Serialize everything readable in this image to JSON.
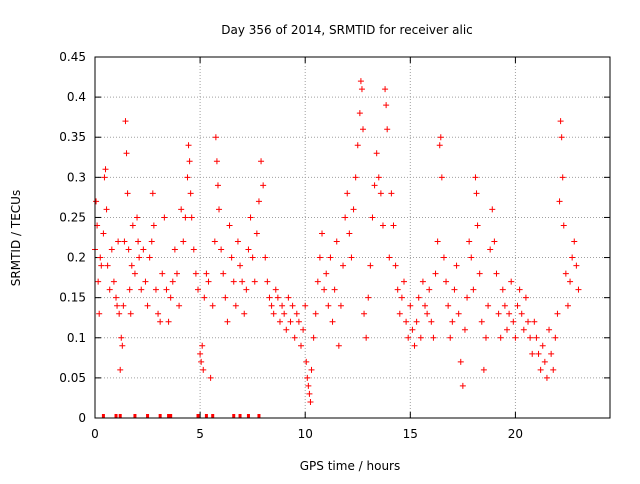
{
  "chart_data": {
    "type": "scatter",
    "title": "Day 356 of 2014, SRMTID for receiver alic",
    "xlabel": "GPS time / hours",
    "ylabel": "SRMTID / TECUs",
    "xlim": [
      0,
      24.5
    ],
    "ylim": [
      0,
      0.45
    ],
    "x_ticks": [
      0,
      5,
      10,
      15,
      20
    ],
    "y_ticks": [
      0,
      0.05,
      0.1,
      0.15,
      0.2,
      0.25,
      0.3,
      0.35,
      0.4,
      0.45
    ],
    "x_tick_labels": [
      "0",
      "5",
      "10",
      "15",
      "20"
    ],
    "y_tick_labels": [
      "0",
      "0.05",
      "0.1",
      "0.15",
      "0.2",
      "0.25",
      "0.3",
      "0.35",
      "0.4",
      "0.45"
    ],
    "grid": true,
    "marker": "+",
    "color": "#ff0000",
    "series": [
      {
        "values": [
          [
            0.0,
            0.21
          ],
          [
            0.05,
            0.27
          ],
          [
            0.1,
            0.24
          ],
          [
            0.15,
            0.17
          ],
          [
            0.2,
            0.13
          ],
          [
            0.25,
            0.2
          ],
          [
            0.3,
            0.19
          ],
          [
            0.4,
            0.23
          ],
          [
            0.45,
            0.3
          ],
          [
            0.5,
            0.31
          ],
          [
            0.55,
            0.26
          ],
          [
            0.6,
            0.19
          ],
          [
            0.7,
            0.16
          ],
          [
            0.8,
            0.21
          ],
          [
            0.9,
            0.17
          ],
          [
            1.0,
            0.15
          ],
          [
            1.05,
            0.14
          ],
          [
            1.1,
            0.22
          ],
          [
            1.15,
            0.13
          ],
          [
            1.2,
            0.06
          ],
          [
            1.25,
            0.1
          ],
          [
            1.3,
            0.09
          ],
          [
            1.35,
            0.14
          ],
          [
            1.4,
            0.22
          ],
          [
            1.45,
            0.37
          ],
          [
            1.5,
            0.33
          ],
          [
            1.55,
            0.28
          ],
          [
            1.6,
            0.21
          ],
          [
            1.65,
            0.16
          ],
          [
            1.7,
            0.13
          ],
          [
            1.75,
            0.19
          ],
          [
            1.8,
            0.24
          ],
          [
            1.9,
            0.18
          ],
          [
            2.0,
            0.25
          ],
          [
            2.05,
            0.22
          ],
          [
            2.1,
            0.2
          ],
          [
            2.2,
            0.16
          ],
          [
            2.3,
            0.21
          ],
          [
            2.4,
            0.17
          ],
          [
            2.5,
            0.14
          ],
          [
            2.6,
            0.2
          ],
          [
            2.7,
            0.22
          ],
          [
            2.75,
            0.28
          ],
          [
            2.8,
            0.24
          ],
          [
            2.9,
            0.16
          ],
          [
            3.0,
            0.13
          ],
          [
            3.1,
            0.12
          ],
          [
            3.2,
            0.18
          ],
          [
            3.3,
            0.25
          ],
          [
            3.4,
            0.16
          ],
          [
            3.5,
            0.12
          ],
          [
            3.6,
            0.15
          ],
          [
            3.7,
            0.17
          ],
          [
            3.8,
            0.21
          ],
          [
            3.9,
            0.18
          ],
          [
            4.0,
            0.14
          ],
          [
            4.1,
            0.26
          ],
          [
            4.2,
            0.22
          ],
          [
            4.3,
            0.25
          ],
          [
            4.4,
            0.3
          ],
          [
            4.45,
            0.34
          ],
          [
            4.5,
            0.32
          ],
          [
            4.55,
            0.28
          ],
          [
            4.6,
            0.25
          ],
          [
            4.7,
            0.21
          ],
          [
            4.8,
            0.18
          ],
          [
            4.9,
            0.16
          ],
          [
            5.0,
            0.08
          ],
          [
            5.05,
            0.07
          ],
          [
            5.1,
            0.09
          ],
          [
            5.15,
            0.06
          ],
          [
            5.2,
            0.15
          ],
          [
            5.3,
            0.18
          ],
          [
            5.4,
            0.17
          ],
          [
            5.5,
            0.05
          ],
          [
            5.6,
            0.14
          ],
          [
            5.7,
            0.22
          ],
          [
            5.75,
            0.35
          ],
          [
            5.8,
            0.32
          ],
          [
            5.85,
            0.29
          ],
          [
            5.9,
            0.26
          ],
          [
            6.0,
            0.21
          ],
          [
            6.1,
            0.18
          ],
          [
            6.2,
            0.15
          ],
          [
            6.3,
            0.12
          ],
          [
            6.4,
            0.24
          ],
          [
            6.5,
            0.2
          ],
          [
            6.6,
            0.17
          ],
          [
            6.7,
            0.14
          ],
          [
            6.8,
            0.22
          ],
          [
            6.9,
            0.19
          ],
          [
            7.0,
            0.17
          ],
          [
            7.1,
            0.13
          ],
          [
            7.2,
            0.16
          ],
          [
            7.3,
            0.21
          ],
          [
            7.4,
            0.25
          ],
          [
            7.5,
            0.2
          ],
          [
            7.6,
            0.17
          ],
          [
            7.7,
            0.23
          ],
          [
            7.8,
            0.27
          ],
          [
            7.9,
            0.32
          ],
          [
            8.0,
            0.29
          ],
          [
            8.1,
            0.2
          ],
          [
            8.2,
            0.17
          ],
          [
            8.3,
            0.15
          ],
          [
            8.4,
            0.14
          ],
          [
            8.5,
            0.13
          ],
          [
            8.6,
            0.16
          ],
          [
            8.7,
            0.15
          ],
          [
            8.8,
            0.12
          ],
          [
            8.9,
            0.14
          ],
          [
            9.0,
            0.13
          ],
          [
            9.1,
            0.11
          ],
          [
            9.2,
            0.15
          ],
          [
            9.3,
            0.12
          ],
          [
            9.4,
            0.14
          ],
          [
            9.5,
            0.1
          ],
          [
            9.6,
            0.13
          ],
          [
            9.7,
            0.12
          ],
          [
            9.8,
            0.09
          ],
          [
            9.9,
            0.11
          ],
          [
            10.0,
            0.14
          ],
          [
            10.05,
            0.07
          ],
          [
            10.1,
            0.05
          ],
          [
            10.15,
            0.04
          ],
          [
            10.2,
            0.03
          ],
          [
            10.25,
            0.02
          ],
          [
            10.3,
            0.06
          ],
          [
            10.4,
            0.1
          ],
          [
            10.5,
            0.13
          ],
          [
            10.6,
            0.17
          ],
          [
            10.7,
            0.2
          ],
          [
            10.8,
            0.23
          ],
          [
            10.9,
            0.16
          ],
          [
            11.0,
            0.18
          ],
          [
            11.1,
            0.14
          ],
          [
            11.2,
            0.2
          ],
          [
            11.3,
            0.12
          ],
          [
            11.4,
            0.16
          ],
          [
            11.5,
            0.22
          ],
          [
            11.6,
            0.09
          ],
          [
            11.7,
            0.14
          ],
          [
            11.8,
            0.19
          ],
          [
            11.9,
            0.25
          ],
          [
            12.0,
            0.28
          ],
          [
            12.1,
            0.23
          ],
          [
            12.2,
            0.2
          ],
          [
            12.3,
            0.26
          ],
          [
            12.4,
            0.3
          ],
          [
            12.5,
            0.34
          ],
          [
            12.6,
            0.38
          ],
          [
            12.65,
            0.42
          ],
          [
            12.7,
            0.41
          ],
          [
            12.75,
            0.36
          ],
          [
            12.8,
            0.13
          ],
          [
            12.9,
            0.1
          ],
          [
            13.0,
            0.15
          ],
          [
            13.1,
            0.19
          ],
          [
            13.2,
            0.25
          ],
          [
            13.3,
            0.29
          ],
          [
            13.4,
            0.33
          ],
          [
            13.5,
            0.3
          ],
          [
            13.6,
            0.28
          ],
          [
            13.7,
            0.24
          ],
          [
            13.8,
            0.41
          ],
          [
            13.85,
            0.39
          ],
          [
            13.9,
            0.36
          ],
          [
            14.0,
            0.2
          ],
          [
            14.1,
            0.28
          ],
          [
            14.2,
            0.24
          ],
          [
            14.3,
            0.19
          ],
          [
            14.4,
            0.16
          ],
          [
            14.5,
            0.13
          ],
          [
            14.6,
            0.15
          ],
          [
            14.7,
            0.17
          ],
          [
            14.8,
            0.12
          ],
          [
            14.9,
            0.1
          ],
          [
            15.0,
            0.14
          ],
          [
            15.1,
            0.11
          ],
          [
            15.2,
            0.09
          ],
          [
            15.3,
            0.12
          ],
          [
            15.4,
            0.15
          ],
          [
            15.5,
            0.1
          ],
          [
            15.6,
            0.17
          ],
          [
            15.7,
            0.14
          ],
          [
            15.8,
            0.13
          ],
          [
            15.9,
            0.16
          ],
          [
            16.0,
            0.12
          ],
          [
            16.1,
            0.1
          ],
          [
            16.2,
            0.18
          ],
          [
            16.3,
            0.22
          ],
          [
            16.4,
            0.34
          ],
          [
            16.45,
            0.35
          ],
          [
            16.5,
            0.3
          ],
          [
            16.6,
            0.2
          ],
          [
            16.7,
            0.17
          ],
          [
            16.8,
            0.14
          ],
          [
            16.9,
            0.1
          ],
          [
            17.0,
            0.12
          ],
          [
            17.1,
            0.16
          ],
          [
            17.2,
            0.19
          ],
          [
            17.3,
            0.13
          ],
          [
            17.4,
            0.07
          ],
          [
            17.5,
            0.04
          ],
          [
            17.6,
            0.11
          ],
          [
            17.7,
            0.15
          ],
          [
            17.8,
            0.22
          ],
          [
            17.9,
            0.2
          ],
          [
            18.0,
            0.16
          ],
          [
            18.1,
            0.3
          ],
          [
            18.15,
            0.28
          ],
          [
            18.2,
            0.24
          ],
          [
            18.3,
            0.18
          ],
          [
            18.4,
            0.12
          ],
          [
            18.5,
            0.06
          ],
          [
            18.6,
            0.1
          ],
          [
            18.7,
            0.14
          ],
          [
            18.8,
            0.21
          ],
          [
            18.9,
            0.26
          ],
          [
            19.0,
            0.22
          ],
          [
            19.1,
            0.18
          ],
          [
            19.2,
            0.13
          ],
          [
            19.3,
            0.1
          ],
          [
            19.4,
            0.16
          ],
          [
            19.5,
            0.14
          ],
          [
            19.6,
            0.11
          ],
          [
            19.7,
            0.13
          ],
          [
            19.8,
            0.17
          ],
          [
            19.9,
            0.12
          ],
          [
            20.0,
            0.1
          ],
          [
            20.1,
            0.14
          ],
          [
            20.2,
            0.16
          ],
          [
            20.3,
            0.13
          ],
          [
            20.4,
            0.11
          ],
          [
            20.5,
            0.15
          ],
          [
            20.6,
            0.12
          ],
          [
            20.7,
            0.1
          ],
          [
            20.8,
            0.08
          ],
          [
            20.9,
            0.12
          ],
          [
            21.0,
            0.1
          ],
          [
            21.1,
            0.08
          ],
          [
            21.2,
            0.06
          ],
          [
            21.3,
            0.09
          ],
          [
            21.4,
            0.07
          ],
          [
            21.5,
            0.05
          ],
          [
            21.6,
            0.11
          ],
          [
            21.7,
            0.08
          ],
          [
            21.8,
            0.06
          ],
          [
            21.9,
            0.1
          ],
          [
            22.0,
            0.13
          ],
          [
            22.1,
            0.27
          ],
          [
            22.15,
            0.37
          ],
          [
            22.2,
            0.35
          ],
          [
            22.25,
            0.3
          ],
          [
            22.3,
            0.24
          ],
          [
            22.4,
            0.18
          ],
          [
            22.5,
            0.14
          ],
          [
            22.6,
            0.17
          ],
          [
            22.7,
            0.2
          ],
          [
            22.8,
            0.22
          ],
          [
            22.9,
            0.19
          ],
          [
            23.0,
            0.16
          ]
        ]
      },
      {
        "values": [
          [
            0.4,
            0.0
          ],
          [
            1.0,
            0.0
          ],
          [
            1.2,
            0.0
          ],
          [
            1.9,
            0.0
          ],
          [
            2.5,
            0.0
          ],
          [
            3.1,
            0.0
          ],
          [
            3.5,
            0.0
          ],
          [
            3.6,
            0.0
          ],
          [
            4.9,
            0.0
          ],
          [
            5.3,
            0.0
          ],
          [
            5.6,
            0.0
          ],
          [
            6.6,
            0.0
          ],
          [
            6.9,
            0.0
          ],
          [
            7.3,
            0.0
          ],
          [
            7.8,
            0.0
          ]
        ]
      }
    ]
  }
}
